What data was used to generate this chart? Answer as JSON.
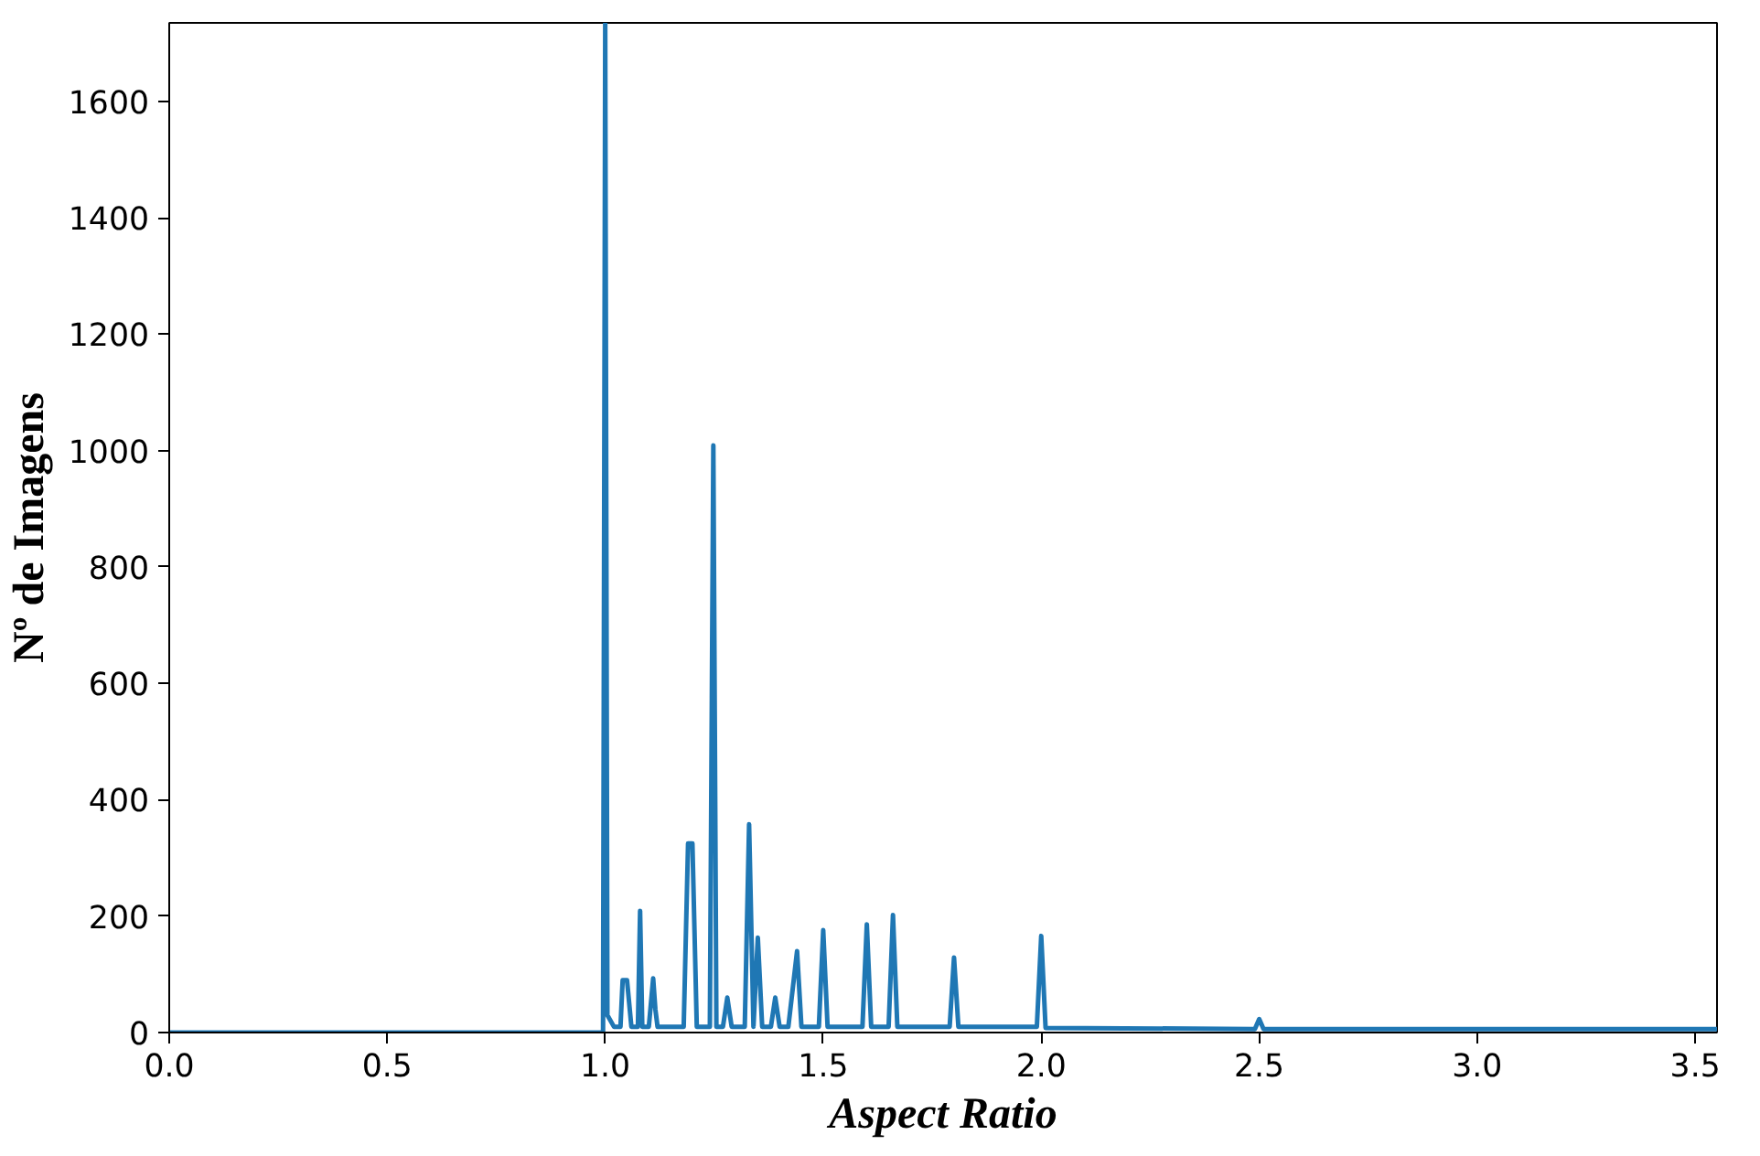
{
  "chart_data": {
    "type": "line",
    "xlabel": "Aspect Ratio",
    "ylabel": "Nº de Imagens",
    "xlim": [
      0,
      3.55
    ],
    "ylim": [
      0,
      1735
    ],
    "xticks": [
      {
        "value": 0,
        "label": "0.0"
      },
      {
        "value": 0.5,
        "label": "0.5"
      },
      {
        "value": 1,
        "label": "1.0"
      },
      {
        "value": 1.5,
        "label": "1.5"
      },
      {
        "value": 2,
        "label": "2.0"
      },
      {
        "value": 2.5,
        "label": "2.5"
      },
      {
        "value": 3,
        "label": "3.0"
      },
      {
        "value": 3.5,
        "label": "3.5"
      }
    ],
    "yticks": [
      0,
      200,
      400,
      600,
      800,
      1000,
      1200,
      1400,
      1600
    ],
    "grid": false,
    "series": [
      {
        "color": "#1f77b4",
        "x": [
          0,
          0.995,
          1.0,
          1.005,
          1.02,
          1.035,
          1.04,
          1.05,
          1.06,
          1.075,
          1.08,
          1.085,
          1.1,
          1.11,
          1.115,
          1.12,
          1.18,
          1.19,
          1.2,
          1.21,
          1.24,
          1.248,
          1.255,
          1.27,
          1.28,
          1.29,
          1.32,
          1.33,
          1.34,
          1.35,
          1.36,
          1.38,
          1.39,
          1.4,
          1.42,
          1.44,
          1.45,
          1.49,
          1.5,
          1.51,
          1.59,
          1.6,
          1.61,
          1.65,
          1.66,
          1.67,
          1.79,
          1.8,
          1.81,
          1.99,
          2.0,
          2.01,
          2.49,
          2.5,
          2.51,
          3.0,
          3.55
        ],
        "values": [
          0,
          0,
          1735,
          30,
          10,
          10,
          90,
          90,
          10,
          10,
          209,
          10,
          10,
          93,
          40,
          10,
          10,
          325,
          325,
          10,
          10,
          1009,
          10,
          10,
          60,
          10,
          10,
          358,
          10,
          163,
          10,
          10,
          60,
          10,
          10,
          140,
          10,
          10,
          176,
          10,
          10,
          186,
          10,
          10,
          202,
          10,
          10,
          129,
          10,
          10,
          166,
          8,
          6,
          23,
          6,
          6,
          6
        ]
      }
    ]
  }
}
